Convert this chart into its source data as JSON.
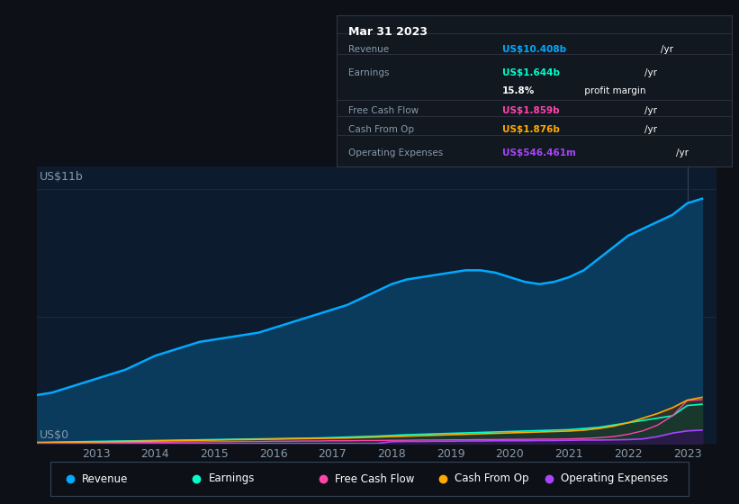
{
  "background_color": "#0d1117",
  "plot_bg_color": "#0d1b2e",
  "text_color": "#8899aa",
  "ylabel_text": "US$11b",
  "y0_text": "US$0",
  "x_labels": [
    "2013",
    "2014",
    "2015",
    "2016",
    "2017",
    "2018",
    "2019",
    "2020",
    "2021",
    "2022",
    "2023"
  ],
  "years": [
    2012.0,
    2012.25,
    2012.5,
    2012.75,
    2013.0,
    2013.25,
    2013.5,
    2013.75,
    2014.0,
    2014.25,
    2014.5,
    2014.75,
    2015.0,
    2015.25,
    2015.5,
    2015.75,
    2016.0,
    2016.25,
    2016.5,
    2016.75,
    2017.0,
    2017.25,
    2017.5,
    2017.75,
    2018.0,
    2018.25,
    2018.5,
    2018.75,
    2019.0,
    2019.25,
    2019.5,
    2019.75,
    2020.0,
    2020.25,
    2020.5,
    2020.75,
    2021.0,
    2021.25,
    2021.5,
    2021.75,
    2022.0,
    2022.25,
    2022.5,
    2022.75,
    2023.0,
    2023.25
  ],
  "revenue": [
    2.1,
    2.2,
    2.4,
    2.6,
    2.8,
    3.0,
    3.2,
    3.5,
    3.8,
    4.0,
    4.2,
    4.4,
    4.5,
    4.6,
    4.7,
    4.8,
    5.0,
    5.2,
    5.4,
    5.6,
    5.8,
    6.0,
    6.3,
    6.6,
    6.9,
    7.1,
    7.2,
    7.3,
    7.4,
    7.5,
    7.5,
    7.4,
    7.2,
    7.0,
    6.9,
    7.0,
    7.2,
    7.5,
    8.0,
    8.5,
    9.0,
    9.3,
    9.6,
    9.9,
    10.4,
    10.6
  ],
  "earnings": [
    0.05,
    0.06,
    0.07,
    0.08,
    0.09,
    0.1,
    0.11,
    0.12,
    0.13,
    0.14,
    0.15,
    0.16,
    0.17,
    0.18,
    0.19,
    0.2,
    0.21,
    0.22,
    0.23,
    0.24,
    0.26,
    0.28,
    0.3,
    0.32,
    0.35,
    0.38,
    0.4,
    0.42,
    0.44,
    0.46,
    0.48,
    0.5,
    0.52,
    0.54,
    0.56,
    0.58,
    0.6,
    0.65,
    0.7,
    0.8,
    0.9,
    1.0,
    1.1,
    1.2,
    1.644,
    1.7
  ],
  "free_cash_flow": [
    0.02,
    0.02,
    0.03,
    0.03,
    0.04,
    0.04,
    0.05,
    0.05,
    0.06,
    0.06,
    0.07,
    0.07,
    0.08,
    0.08,
    0.09,
    0.09,
    0.1,
    0.1,
    0.11,
    0.11,
    0.12,
    0.12,
    0.13,
    0.13,
    0.14,
    0.14,
    0.15,
    0.15,
    0.16,
    0.16,
    0.17,
    0.17,
    0.18,
    0.18,
    0.19,
    0.19,
    0.2,
    0.22,
    0.25,
    0.3,
    0.4,
    0.55,
    0.8,
    1.2,
    1.859,
    1.9
  ],
  "cash_from_op": [
    0.03,
    0.04,
    0.05,
    0.06,
    0.07,
    0.08,
    0.09,
    0.1,
    0.11,
    0.12,
    0.13,
    0.14,
    0.15,
    0.16,
    0.17,
    0.18,
    0.19,
    0.2,
    0.21,
    0.22,
    0.23,
    0.24,
    0.26,
    0.28,
    0.3,
    0.32,
    0.34,
    0.36,
    0.38,
    0.4,
    0.42,
    0.44,
    0.46,
    0.48,
    0.5,
    0.52,
    0.54,
    0.58,
    0.65,
    0.75,
    0.9,
    1.1,
    1.3,
    1.55,
    1.876,
    2.0
  ],
  "op_expenses": [
    0.0,
    0.0,
    0.0,
    0.0,
    0.0,
    0.0,
    0.0,
    0.0,
    0.0,
    0.0,
    0.0,
    0.0,
    0.0,
    0.0,
    0.0,
    0.0,
    0.0,
    0.0,
    0.0,
    0.0,
    0.0,
    0.0,
    0.0,
    0.0,
    0.08,
    0.09,
    0.09,
    0.1,
    0.1,
    0.11,
    0.11,
    0.12,
    0.12,
    0.12,
    0.13,
    0.13,
    0.14,
    0.15,
    0.15,
    0.16,
    0.17,
    0.2,
    0.3,
    0.45,
    0.546,
    0.58
  ],
  "revenue_color": "#00aaff",
  "earnings_color": "#00ffcc",
  "fcf_color": "#ff44aa",
  "cashop_color": "#ffaa00",
  "opex_color": "#aa44ff",
  "revenue_fill": "#0a3a5c",
  "cashop_fill": "#3a3020",
  "earnings_fill": "#103a30",
  "opex_fill": "#2a1a4a",
  "tooltip_bg": "#111820",
  "ylim": [
    0,
    12
  ],
  "xlim": [
    2012.0,
    2023.5
  ],
  "legend_items": [
    "Revenue",
    "Earnings",
    "Free Cash Flow",
    "Cash From Op",
    "Operating Expenses"
  ],
  "legend_colors": [
    "#00aaff",
    "#00ffcc",
    "#ff44aa",
    "#ffaa00",
    "#aa44ff"
  ],
  "tooltip_title": "Mar 31 2023",
  "tooltip_rows": [
    {
      "label": "Revenue",
      "value": "US$10.408b",
      "unit": "/yr",
      "color": "#00aaff"
    },
    {
      "label": "Earnings",
      "value": "US$1.644b",
      "unit": "/yr",
      "color": "#00ffcc"
    },
    {
      "label": "",
      "value": "15.8%",
      "unit": " profit margin",
      "color": "#ffffff"
    },
    {
      "label": "Free Cash Flow",
      "value": "US$1.859b",
      "unit": "/yr",
      "color": "#ff44aa"
    },
    {
      "label": "Cash From Op",
      "value": "US$1.876b",
      "unit": "/yr",
      "color": "#ffaa00"
    },
    {
      "label": "Operating Expenses",
      "value": "US$546.461m",
      "unit": "/yr",
      "color": "#aa44ff"
    }
  ]
}
